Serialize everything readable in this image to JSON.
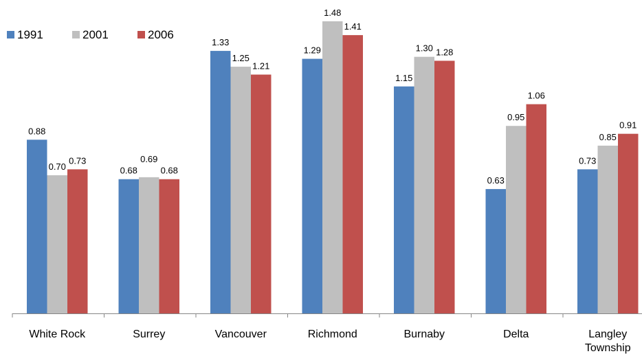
{
  "chart_data": {
    "type": "bar",
    "categories": [
      [
        "White Rock"
      ],
      [
        "Surrey"
      ],
      [
        "Vancouver"
      ],
      [
        "Richmond"
      ],
      [
        "Burnaby"
      ],
      [
        "Delta"
      ],
      [
        "Langley",
        "Township"
      ]
    ],
    "series": [
      {
        "name": "1991",
        "color": "#4f81bd",
        "values": [
          0.88,
          0.68,
          1.33,
          1.29,
          1.15,
          0.63,
          0.73
        ],
        "labels": [
          "0.88",
          "0.68",
          "1.33",
          "1.29",
          "1.15",
          "0.63",
          "0.73"
        ]
      },
      {
        "name": "2001",
        "color": "#bfbfbf",
        "values": [
          0.7,
          0.69,
          1.25,
          1.48,
          1.3,
          0.95,
          0.85
        ],
        "labels": [
          "0.70",
          "0.69",
          "1.25",
          "1.48",
          "1.30",
          "0.95",
          "0.85"
        ]
      },
      {
        "name": "2006",
        "color": "#c0504d",
        "values": [
          0.73,
          0.68,
          1.21,
          1.41,
          1.28,
          1.06,
          0.91
        ],
        "labels": [
          "0.73",
          "0.68",
          "1.21",
          "1.41",
          "1.28",
          "1.06",
          "0.91"
        ]
      }
    ],
    "title": "",
    "xlabel": "",
    "ylabel": "",
    "ylim": [
      0,
      1.48
    ],
    "grid": false,
    "legend_position": "top-left"
  }
}
